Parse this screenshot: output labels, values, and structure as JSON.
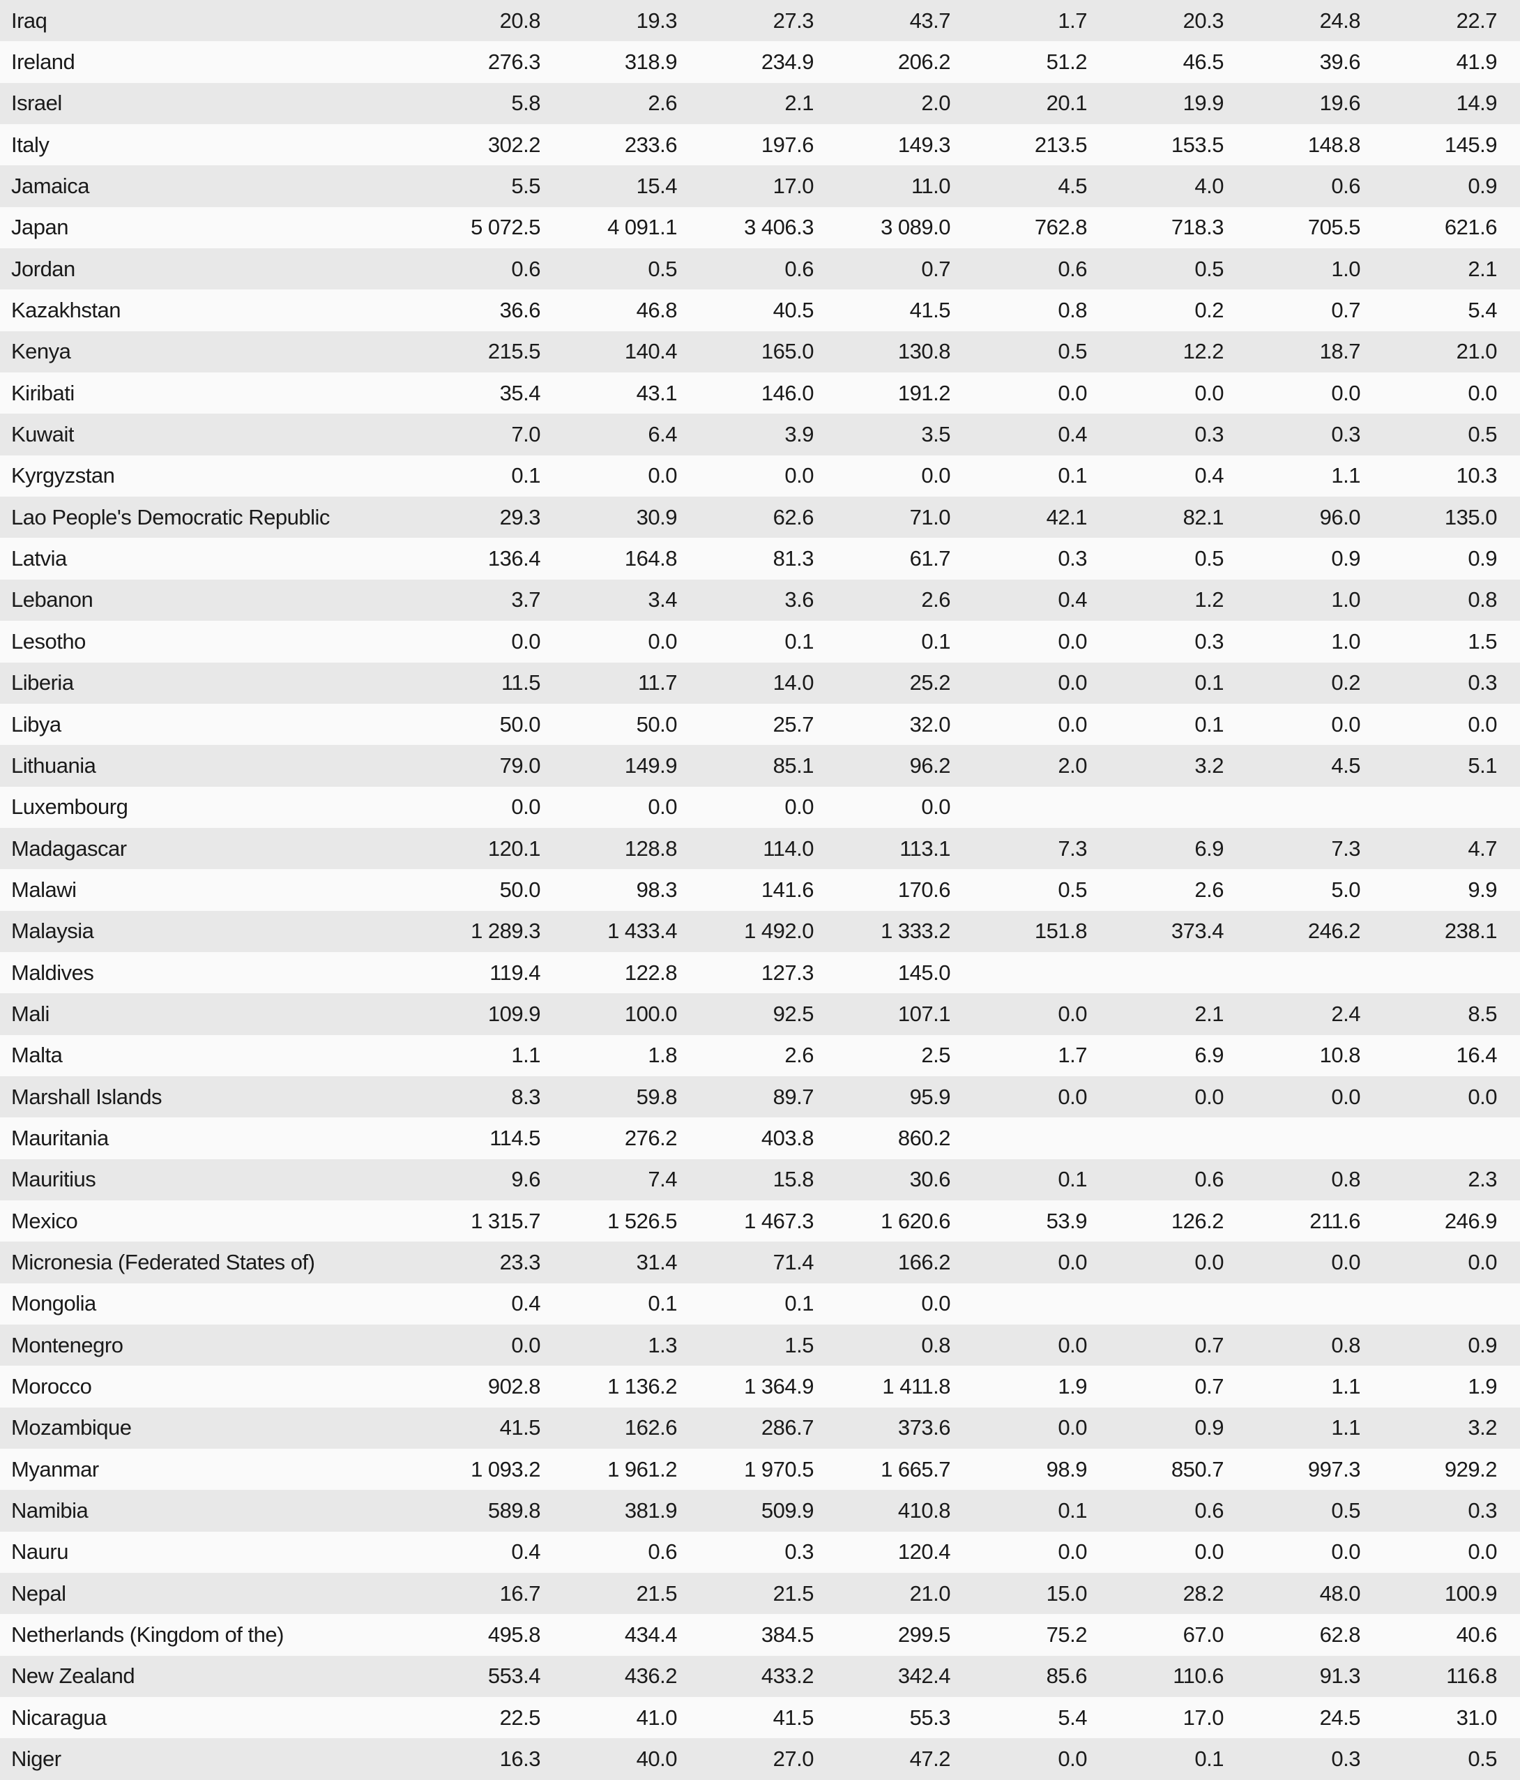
{
  "rows": [
    {
      "name": "Iraq",
      "v": [
        "20.8",
        "19.3",
        "27.3",
        "43.7",
        "1.7",
        "20.3",
        "24.8",
        "22.7"
      ]
    },
    {
      "name": "Ireland",
      "v": [
        "276.3",
        "318.9",
        "234.9",
        "206.2",
        "51.2",
        "46.5",
        "39.6",
        "41.9"
      ]
    },
    {
      "name": "Israel",
      "v": [
        "5.8",
        "2.6",
        "2.1",
        "2.0",
        "20.1",
        "19.9",
        "19.6",
        "14.9"
      ]
    },
    {
      "name": "Italy",
      "v": [
        "302.2",
        "233.6",
        "197.6",
        "149.3",
        "213.5",
        "153.5",
        "148.8",
        "145.9"
      ]
    },
    {
      "name": "Jamaica",
      "v": [
        "5.5",
        "15.4",
        "17.0",
        "11.0",
        "4.5",
        "4.0",
        "0.6",
        "0.9"
      ]
    },
    {
      "name": "Japan",
      "v": [
        "5 072.5",
        "4 091.1",
        "3 406.3",
        "3 089.0",
        "762.8",
        "718.3",
        "705.5",
        "621.6"
      ]
    },
    {
      "name": "Jordan",
      "v": [
        "0.6",
        "0.5",
        "0.6",
        "0.7",
        "0.6",
        "0.5",
        "1.0",
        "2.1"
      ]
    },
    {
      "name": "Kazakhstan",
      "v": [
        "36.6",
        "46.8",
        "40.5",
        "41.5",
        "0.8",
        "0.2",
        "0.7",
        "5.4"
      ]
    },
    {
      "name": "Kenya",
      "v": [
        "215.5",
        "140.4",
        "165.0",
        "130.8",
        "0.5",
        "12.2",
        "18.7",
        "21.0"
      ]
    },
    {
      "name": "Kiribati",
      "v": [
        "35.4",
        "43.1",
        "146.0",
        "191.2",
        "0.0",
        "0.0",
        "0.0",
        "0.0"
      ]
    },
    {
      "name": "Kuwait",
      "v": [
        "7.0",
        "6.4",
        "3.9",
        "3.5",
        "0.4",
        "0.3",
        "0.3",
        "0.5"
      ]
    },
    {
      "name": "Kyrgyzstan",
      "v": [
        "0.1",
        "0.0",
        "0.0",
        "0.0",
        "0.1",
        "0.4",
        "1.1",
        "10.3"
      ]
    },
    {
      "name": "Lao People's Democratic Republic",
      "v": [
        "29.3",
        "30.9",
        "62.6",
        "71.0",
        "42.1",
        "82.1",
        "96.0",
        "135.0"
      ]
    },
    {
      "name": "Latvia",
      "v": [
        "136.4",
        "164.8",
        "81.3",
        "61.7",
        "0.3",
        "0.5",
        "0.9",
        "0.9"
      ]
    },
    {
      "name": "Lebanon",
      "v": [
        "3.7",
        "3.4",
        "3.6",
        "2.6",
        "0.4",
        "1.2",
        "1.0",
        "0.8"
      ]
    },
    {
      "name": "Lesotho",
      "v": [
        "0.0",
        "0.0",
        "0.1",
        "0.1",
        "0.0",
        "0.3",
        "1.0",
        "1.5"
      ]
    },
    {
      "name": "Liberia",
      "v": [
        "11.5",
        "11.7",
        "14.0",
        "25.2",
        "0.0",
        "0.1",
        "0.2",
        "0.3"
      ]
    },
    {
      "name": "Libya",
      "v": [
        "50.0",
        "50.0",
        "25.7",
        "32.0",
        "0.0",
        "0.1",
        "0.0",
        "0.0"
      ]
    },
    {
      "name": "Lithuania",
      "v": [
        "79.0",
        "149.9",
        "85.1",
        "96.2",
        "2.0",
        "3.2",
        "4.5",
        "5.1"
      ]
    },
    {
      "name": "Luxembourg",
      "v": [
        "0.0",
        "0.0",
        "0.0",
        "0.0",
        "",
        "",
        "",
        ""
      ]
    },
    {
      "name": "Madagascar",
      "v": [
        "120.1",
        "128.8",
        "114.0",
        "113.1",
        "7.3",
        "6.9",
        "7.3",
        "4.7"
      ]
    },
    {
      "name": "Malawi",
      "v": [
        "50.0",
        "98.3",
        "141.6",
        "170.6",
        "0.5",
        "2.6",
        "5.0",
        "9.9"
      ]
    },
    {
      "name": "Malaysia",
      "v": [
        "1 289.3",
        "1 433.4",
        "1 492.0",
        "1 333.2",
        "151.8",
        "373.4",
        "246.2",
        "238.1"
      ]
    },
    {
      "name": "Maldives",
      "v": [
        "119.4",
        "122.8",
        "127.3",
        "145.0",
        "",
        "",
        "",
        ""
      ]
    },
    {
      "name": "Mali",
      "v": [
        "109.9",
        "100.0",
        "92.5",
        "107.1",
        "0.0",
        "2.1",
        "2.4",
        "8.5"
      ]
    },
    {
      "name": "Malta",
      "v": [
        "1.1",
        "1.8",
        "2.6",
        "2.5",
        "1.7",
        "6.9",
        "10.8",
        "16.4"
      ]
    },
    {
      "name": "Marshall Islands",
      "v": [
        "8.3",
        "59.8",
        "89.7",
        "95.9",
        "0.0",
        "0.0",
        "0.0",
        "0.0"
      ]
    },
    {
      "name": "Mauritania",
      "v": [
        "114.5",
        "276.2",
        "403.8",
        "860.2",
        "",
        "",
        "",
        ""
      ]
    },
    {
      "name": "Mauritius",
      "v": [
        "9.6",
        "7.4",
        "15.8",
        "30.6",
        "0.1",
        "0.6",
        "0.8",
        "2.3"
      ]
    },
    {
      "name": "Mexico",
      "v": [
        "1 315.7",
        "1 526.5",
        "1 467.3",
        "1 620.6",
        "53.9",
        "126.2",
        "211.6",
        "246.9"
      ]
    },
    {
      "name": "Micronesia (Federated States of)",
      "v": [
        "23.3",
        "31.4",
        "71.4",
        "166.2",
        "0.0",
        "0.0",
        "0.0",
        "0.0"
      ]
    },
    {
      "name": "Mongolia",
      "v": [
        "0.4",
        "0.1",
        "0.1",
        "0.0",
        "",
        "",
        "",
        ""
      ]
    },
    {
      "name": "Montenegro",
      "v": [
        "0.0",
        "1.3",
        "1.5",
        "0.8",
        "0.0",
        "0.7",
        "0.8",
        "0.9"
      ]
    },
    {
      "name": "Morocco",
      "v": [
        "902.8",
        "1 136.2",
        "1 364.9",
        "1 411.8",
        "1.9",
        "0.7",
        "1.1",
        "1.9"
      ]
    },
    {
      "name": "Mozambique",
      "v": [
        "41.5",
        "162.6",
        "286.7",
        "373.6",
        "0.0",
        "0.9",
        "1.1",
        "3.2"
      ]
    },
    {
      "name": "Myanmar",
      "v": [
        "1 093.2",
        "1 961.2",
        "1 970.5",
        "1 665.7",
        "98.9",
        "850.7",
        "997.3",
        "929.2"
      ]
    },
    {
      "name": "Namibia",
      "v": [
        "589.8",
        "381.9",
        "509.9",
        "410.8",
        "0.1",
        "0.6",
        "0.5",
        "0.3"
      ]
    },
    {
      "name": "Nauru",
      "v": [
        "0.4",
        "0.6",
        "0.3",
        "120.4",
        "0.0",
        "0.0",
        "0.0",
        "0.0"
      ]
    },
    {
      "name": "Nepal",
      "v": [
        "16.7",
        "21.5",
        "21.5",
        "21.0",
        "15.0",
        "28.2",
        "48.0",
        "100.9"
      ]
    },
    {
      "name": "Netherlands (Kingdom of the)",
      "v": [
        "495.8",
        "434.4",
        "384.5",
        "299.5",
        "75.2",
        "67.0",
        "62.8",
        "40.6"
      ]
    },
    {
      "name": "New Zealand",
      "v": [
        "553.4",
        "436.2",
        "433.2",
        "342.4",
        "85.6",
        "110.6",
        "91.3",
        "116.8"
      ]
    },
    {
      "name": "Nicaragua",
      "v": [
        "22.5",
        "41.0",
        "41.5",
        "55.3",
        "5.4",
        "17.0",
        "24.5",
        "31.0"
      ]
    },
    {
      "name": "Niger",
      "v": [
        "16.3",
        "40.0",
        "27.0",
        "47.2",
        "0.0",
        "0.1",
        "0.3",
        "0.5"
      ]
    }
  ]
}
